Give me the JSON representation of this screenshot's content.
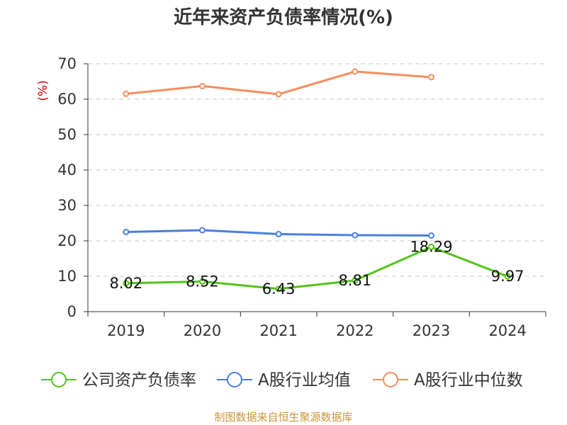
{
  "chart_data": {
    "type": "line",
    "title": "近年来资产负债率情况(%)",
    "ylabel": "(%)",
    "xlabel": "",
    "categories": [
      "2019",
      "2020",
      "2021",
      "2022",
      "2023",
      "2024"
    ],
    "ylim": [
      0,
      70
    ],
    "yticks": [
      0,
      10,
      20,
      30,
      40,
      50,
      60,
      70
    ],
    "grid": true,
    "legend_position": "bottom",
    "series": [
      {
        "name": "公司资产负债率",
        "color": "#52c41a",
        "values": [
          8.02,
          8.52,
          6.43,
          8.81,
          18.29,
          9.97
        ],
        "labels": [
          "8.02",
          "8.52",
          "6.43",
          "8.81",
          "18.29",
          "9.97"
        ]
      },
      {
        "name": "A股行业均值",
        "color": "#4a7fdc",
        "values": [
          22.5,
          23.0,
          21.9,
          21.6,
          21.5,
          null
        ]
      },
      {
        "name": "A股行业中位数",
        "color": "#f58d5c",
        "values": [
          61.5,
          63.7,
          61.4,
          67.8,
          66.2,
          null
        ]
      }
    ],
    "source": "制图数据来自恒生聚源数据库"
  }
}
